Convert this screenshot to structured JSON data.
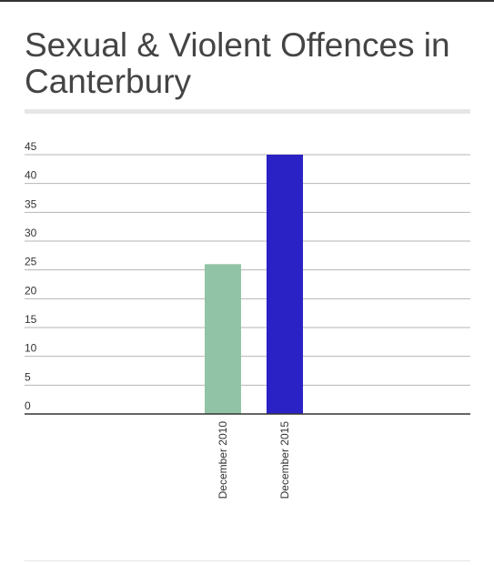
{
  "chart_data": {
    "type": "bar",
    "title": "Sexual & Violent Offences in Canterbury",
    "categories": [
      "December 2010",
      "December 2015"
    ],
    "values": [
      26,
      45
    ],
    "colors": [
      "#91c4a6",
      "#2a22c4"
    ],
    "yticks": [
      0,
      5,
      10,
      15,
      20,
      25,
      30,
      35,
      40,
      45
    ],
    "ylim": [
      0,
      45
    ],
    "grid": true,
    "xlabel": "",
    "ylabel": ""
  }
}
